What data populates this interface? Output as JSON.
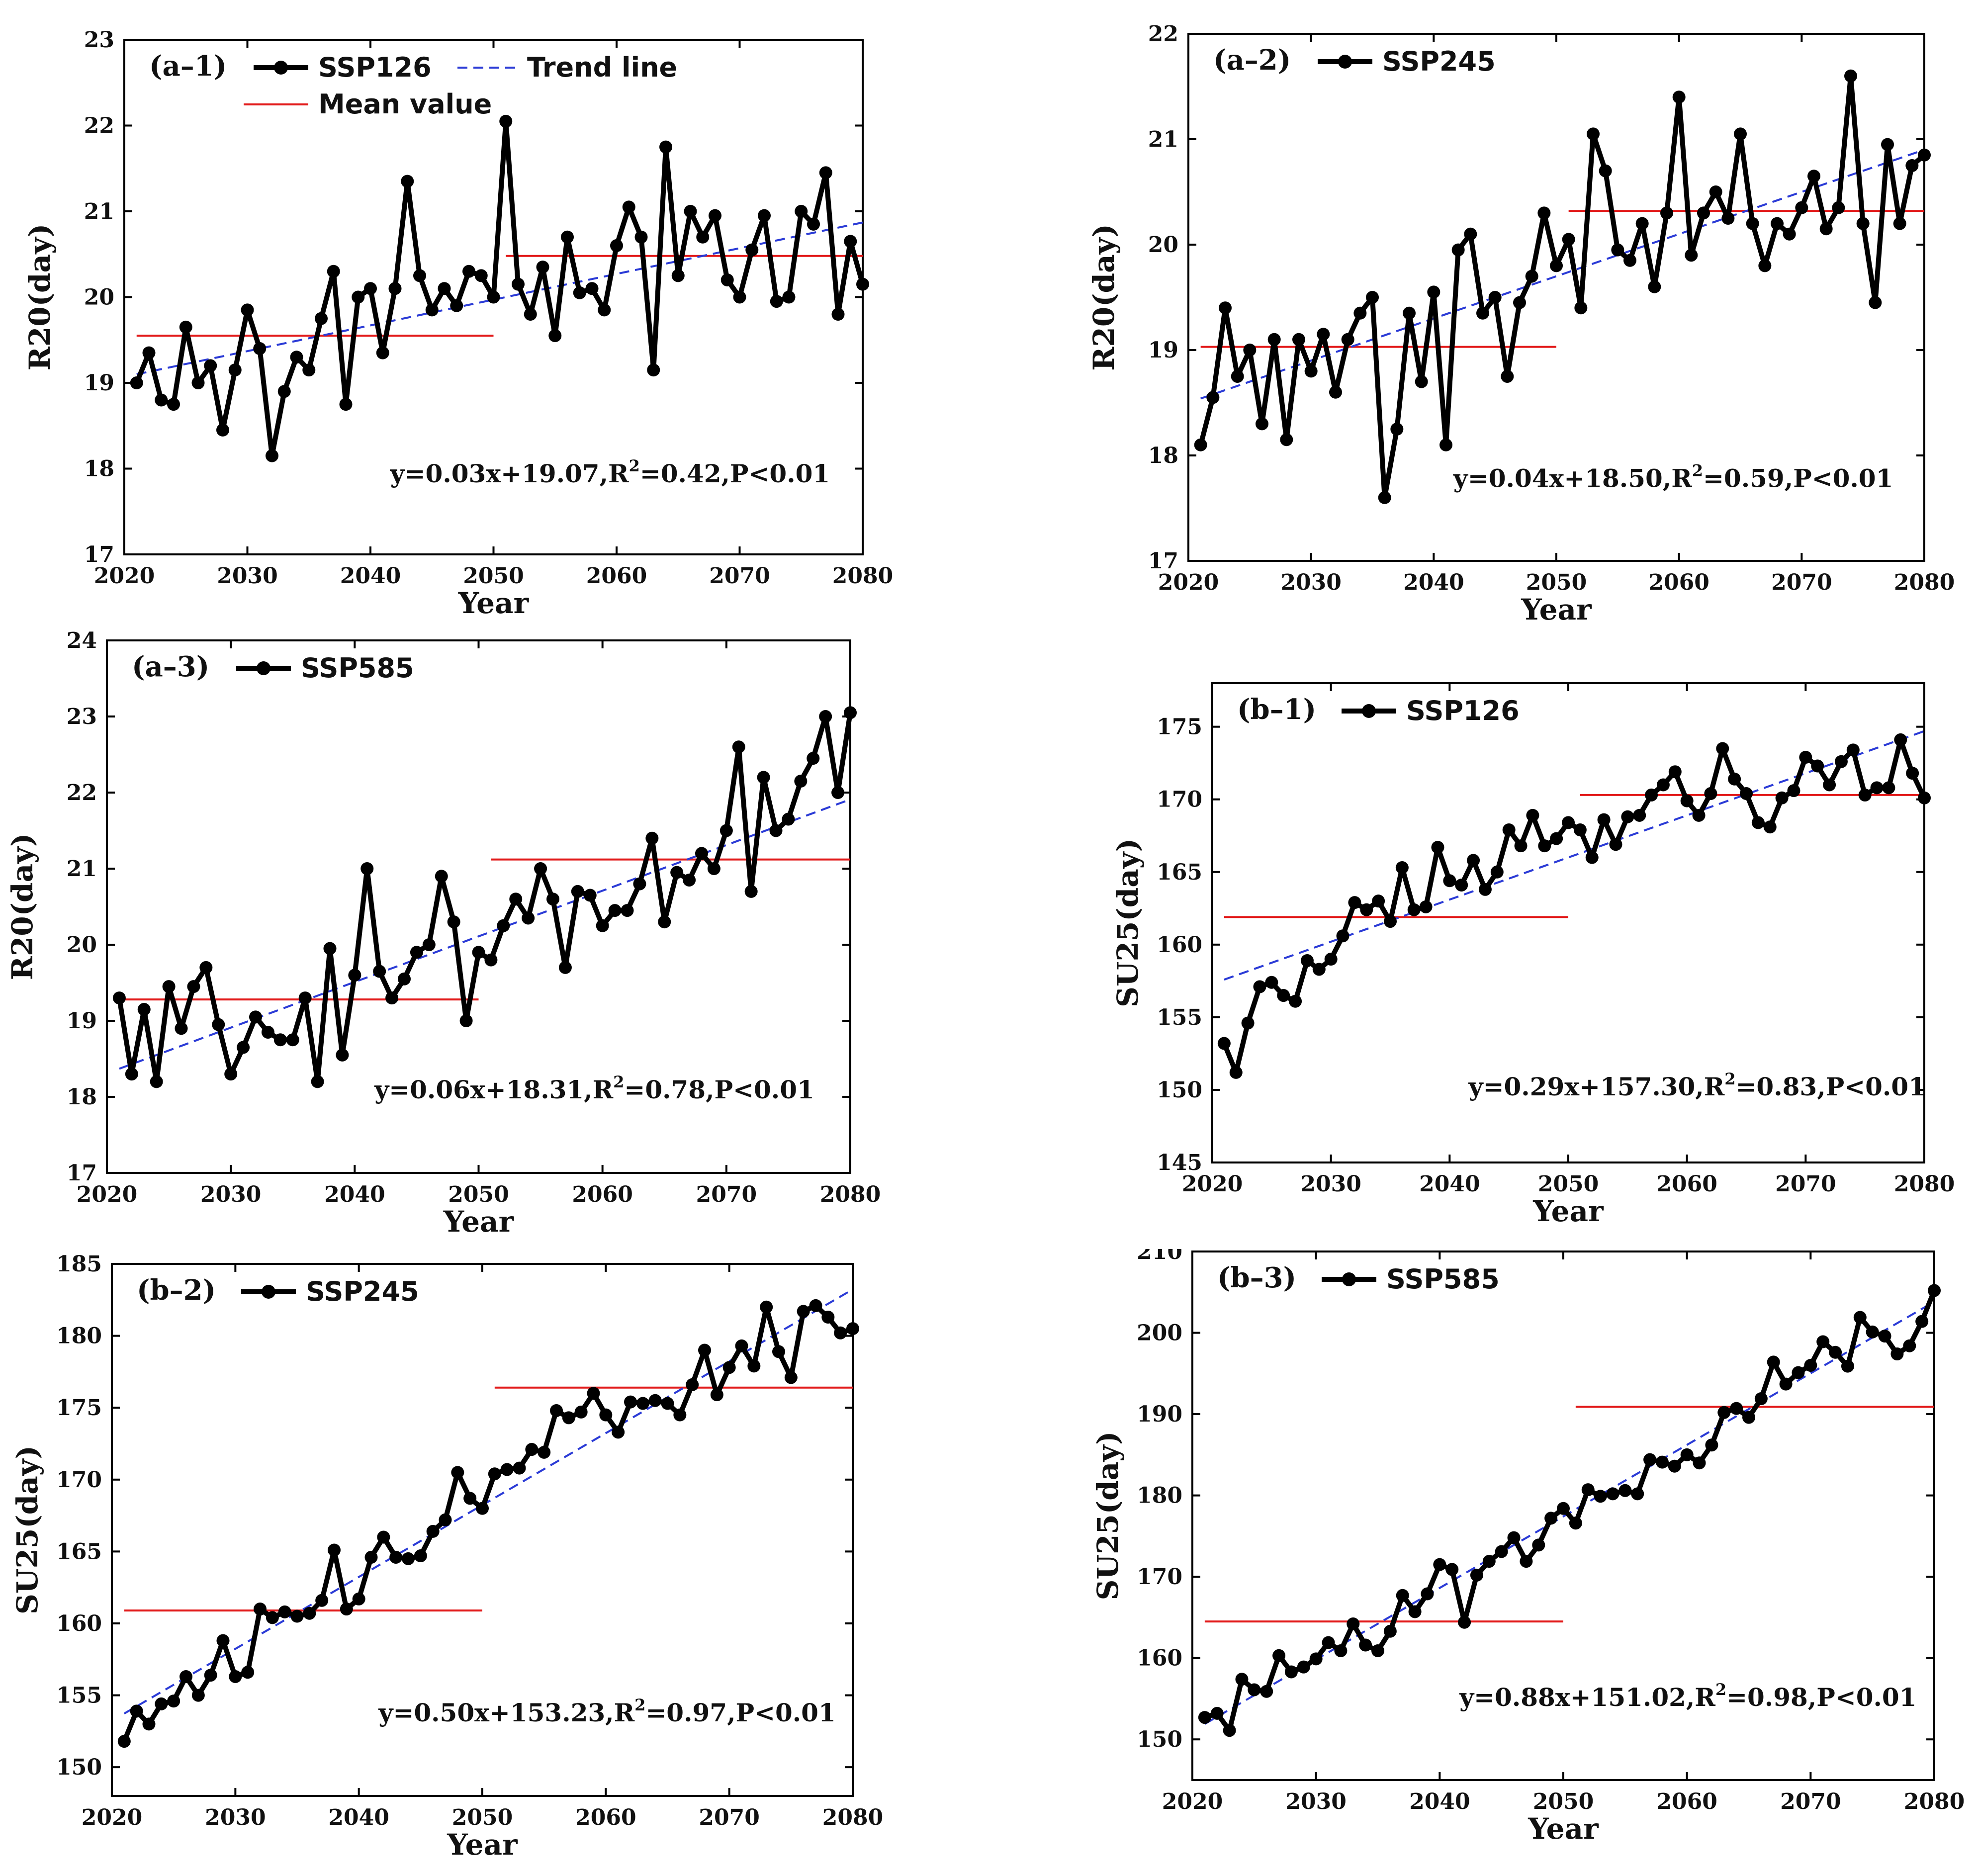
{
  "figure": {
    "panels": [
      {
        "id": "a1",
        "panel_label": "(a–1)",
        "scenario": "SSP126",
        "legend": {
          "series": "SSP126",
          "trend": "Trend line",
          "mean": "Mean value"
        },
        "equation_parts": {
          "prefix": "y=0.03x+19.07,R",
          "sup": "2",
          "suffix": "=0.42,P<0.01"
        }
      },
      {
        "id": "a2",
        "panel_label": "(a–2)",
        "scenario": "SSP245",
        "legend": {
          "series": "SSP245"
        },
        "equation_parts": {
          "prefix": "y=0.04x+18.50,R",
          "sup": "2",
          "suffix": "=0.59,P<0.01"
        }
      },
      {
        "id": "a3",
        "panel_label": "(a–3)",
        "scenario": "SSP585",
        "legend": {
          "series": "SSP585"
        },
        "equation_parts": {
          "prefix": "y=0.06x+18.31,R",
          "sup": "2",
          "suffix": "=0.78,P<0.01"
        }
      },
      {
        "id": "b1",
        "panel_label": "(b–1)",
        "scenario": "SSP126",
        "legend": {
          "series": "SSP126"
        },
        "equation_parts": {
          "prefix": "y=0.29x+157.30,R",
          "sup": "2",
          "suffix": "=0.83,P<0.01"
        }
      },
      {
        "id": "b2",
        "panel_label": "(b–2)",
        "scenario": "SSP245",
        "legend": {
          "series": "SSP245"
        },
        "equation_parts": {
          "prefix": "y=0.50x+153.23,R",
          "sup": "2",
          "suffix": "=0.97,P<0.01"
        }
      },
      {
        "id": "b3",
        "panel_label": "(b–3)",
        "scenario": "SSP585",
        "legend": {
          "series": "SSP585"
        },
        "equation_parts": {
          "prefix": "y=0.88x+151.02,R",
          "sup": "2",
          "suffix": "=0.98,P<0.01"
        }
      }
    ]
  },
  "colors": {
    "series": "#000000",
    "trend": "#2b3bd6",
    "mean": "#e21a1a"
  },
  "chart_data": [
    {
      "id": "a1",
      "type": "line",
      "title": "(a–1)",
      "xlabel": "Year",
      "ylabel": "R20(day)",
      "xlim": [
        2020,
        2080
      ],
      "ylim": [
        17,
        23
      ],
      "xticks": [
        2020,
        2030,
        2040,
        2050,
        2060,
        2070,
        2080
      ],
      "yticks": [
        17,
        18,
        19,
        20,
        21,
        22,
        23
      ],
      "x_start": 2021,
      "series": [
        {
          "name": "SSP126",
          "values": [
            19.0,
            19.35,
            18.8,
            18.75,
            19.65,
            19.0,
            19.2,
            18.45,
            19.15,
            19.85,
            19.4,
            18.15,
            18.9,
            19.3,
            19.15,
            19.75,
            20.3,
            18.75,
            20.0,
            20.1,
            19.35,
            20.1,
            21.35,
            20.25,
            19.85,
            20.1,
            19.9,
            20.3,
            20.25,
            20.0,
            22.05,
            20.15,
            19.8,
            20.35,
            19.55,
            20.7,
            20.05,
            20.1,
            19.85,
            20.6,
            21.05,
            20.7,
            19.15,
            21.75,
            20.25,
            21.0,
            20.7,
            20.95,
            20.2,
            20.0,
            20.55,
            20.95,
            19.95,
            20.0,
            21.0,
            20.85,
            21.45,
            19.8,
            20.65,
            20.15
          ]
        }
      ],
      "trend": {
        "slope": 0.03,
        "intercept": 19.07
      },
      "means": [
        {
          "from": 2021,
          "to": 2050,
          "value": 19.55
        },
        {
          "from": 2051,
          "to": 2080,
          "value": 20.48
        }
      ],
      "equation": "y=0.03x+19.07,R2=0.42,P<0.01",
      "legend": [
        "SSP126",
        "Trend line",
        "Mean value"
      ]
    },
    {
      "id": "a2",
      "type": "line",
      "title": "(a–2)",
      "xlabel": "Year",
      "ylabel": "R20(day)",
      "xlim": [
        2020,
        2080
      ],
      "ylim": [
        17,
        22
      ],
      "xticks": [
        2020,
        2030,
        2040,
        2050,
        2060,
        2070,
        2080
      ],
      "yticks": [
        17,
        18,
        19,
        20,
        21,
        22
      ],
      "x_start": 2021,
      "series": [
        {
          "name": "SSP245",
          "values": [
            18.1,
            18.55,
            19.4,
            18.75,
            19.0,
            18.3,
            19.1,
            18.15,
            19.1,
            18.8,
            19.15,
            18.6,
            19.1,
            19.35,
            19.5,
            17.6,
            18.25,
            19.35,
            18.7,
            19.55,
            18.1,
            19.95,
            20.1,
            19.35,
            19.5,
            18.75,
            19.45,
            19.7,
            20.3,
            19.8,
            20.05,
            19.4,
            21.05,
            20.7,
            19.95,
            19.85,
            20.2,
            19.6,
            20.3,
            21.4,
            19.9,
            20.3,
            20.5,
            20.25,
            21.05,
            20.2,
            19.8,
            20.2,
            20.1,
            20.35,
            20.65,
            20.15,
            20.35,
            21.6,
            20.2,
            19.45,
            20.95,
            20.2,
            20.75,
            20.85
          ]
        }
      ],
      "trend": {
        "slope": 0.04,
        "intercept": 18.5
      },
      "means": [
        {
          "from": 2021,
          "to": 2050,
          "value": 19.03
        },
        {
          "from": 2051,
          "to": 2080,
          "value": 20.32
        }
      ],
      "equation": "y=0.04x+18.50,R2=0.59,P<0.01",
      "legend": [
        "SSP245"
      ]
    },
    {
      "id": "a3",
      "type": "line",
      "title": "(a–3)",
      "xlabel": "Year",
      "ylabel": "R20(day)",
      "xlim": [
        2020,
        2080
      ],
      "ylim": [
        17,
        24
      ],
      "xticks": [
        2020,
        2030,
        2040,
        2050,
        2060,
        2070,
        2080
      ],
      "yticks": [
        17,
        18,
        19,
        20,
        21,
        22,
        23,
        24
      ],
      "x_start": 2021,
      "series": [
        {
          "name": "SSP585",
          "values": [
            19.3,
            18.3,
            19.15,
            18.2,
            19.45,
            18.9,
            19.45,
            19.7,
            18.95,
            18.3,
            18.65,
            19.05,
            18.85,
            18.75,
            18.75,
            19.3,
            18.2,
            19.95,
            18.55,
            19.6,
            21.0,
            19.65,
            19.3,
            19.55,
            19.9,
            20.0,
            20.9,
            20.3,
            19.0,
            19.9,
            19.8,
            20.25,
            20.6,
            20.35,
            21.0,
            20.6,
            19.7,
            20.7,
            20.65,
            20.25,
            20.45,
            20.45,
            20.8,
            21.4,
            20.3,
            20.95,
            20.85,
            21.2,
            21.0,
            21.5,
            22.6,
            20.7,
            22.2,
            21.5,
            21.65,
            22.15,
            22.45,
            23.0,
            22.0,
            23.05
          ]
        }
      ],
      "trend": {
        "slope": 0.06,
        "intercept": 18.31
      },
      "means": [
        {
          "from": 2021,
          "to": 2050,
          "value": 19.28
        },
        {
          "from": 2051,
          "to": 2080,
          "value": 21.12
        }
      ],
      "equation": "y=0.06x+18.31,R2=0.78,P<0.01",
      "legend": [
        "SSP585"
      ]
    },
    {
      "id": "b1",
      "type": "line",
      "title": "(b–1)",
      "xlabel": "Year",
      "ylabel": "SU25(day)",
      "xlim": [
        2020,
        2080
      ],
      "ylim": [
        145,
        178
      ],
      "xticks": [
        2020,
        2030,
        2040,
        2050,
        2060,
        2070,
        2080
      ],
      "yticks": [
        145,
        150,
        155,
        160,
        165,
        170,
        175
      ],
      "x_start": 2021,
      "series": [
        {
          "name": "SSP126",
          "values": [
            153.2,
            151.2,
            154.6,
            157.1,
            157.4,
            156.5,
            156.1,
            158.9,
            158.3,
            159.0,
            160.6,
            162.9,
            162.4,
            163.0,
            161.6,
            165.3,
            162.4,
            162.6,
            166.7,
            164.4,
            164.1,
            165.8,
            163.8,
            165.0,
            167.9,
            166.8,
            168.9,
            166.8,
            167.3,
            168.4,
            167.9,
            166.0,
            168.6,
            166.9,
            168.8,
            168.9,
            170.3,
            171.0,
            171.9,
            169.9,
            168.9,
            170.4,
            173.5,
            171.4,
            170.4,
            168.4,
            168.1,
            170.1,
            170.6,
            172.9,
            172.3,
            171.0,
            172.6,
            173.4,
            170.3,
            170.8,
            170.8,
            174.1,
            171.8,
            170.1
          ]
        }
      ],
      "trend": {
        "slope": 0.29,
        "intercept": 157.3
      },
      "means": [
        {
          "from": 2021,
          "to": 2050,
          "value": 161.9
        },
        {
          "from": 2051,
          "to": 2080,
          "value": 170.3
        }
      ],
      "equation": "y=0.29x+157.30,R2=0.83,P<0.01",
      "legend": [
        "SSP126"
      ]
    },
    {
      "id": "b2",
      "type": "line",
      "title": "(b–2)",
      "xlabel": "Year",
      "ylabel": "SU25(day)",
      "xlim": [
        2020,
        2080
      ],
      "ylim": [
        148,
        185
      ],
      "xticks": [
        2020,
        2030,
        2040,
        2050,
        2060,
        2070,
        2080
      ],
      "yticks": [
        150,
        155,
        160,
        165,
        170,
        175,
        180,
        185
      ],
      "x_start": 2021,
      "series": [
        {
          "name": "SSP245",
          "values": [
            151.8,
            153.9,
            153.0,
            154.4,
            154.6,
            156.3,
            155.0,
            156.4,
            158.8,
            156.3,
            156.6,
            161.0,
            160.4,
            160.8,
            160.5,
            160.7,
            161.6,
            165.1,
            161.0,
            161.7,
            164.6,
            166.0,
            164.6,
            164.5,
            164.7,
            166.4,
            167.2,
            170.5,
            168.7,
            168.0,
            170.4,
            170.7,
            170.8,
            172.1,
            171.9,
            174.8,
            174.3,
            174.7,
            176.0,
            174.5,
            173.3,
            175.4,
            175.3,
            175.5,
            175.3,
            174.5,
            176.6,
            179.0,
            175.9,
            177.8,
            179.3,
            177.9,
            182.0,
            178.9,
            177.1,
            181.7,
            182.1,
            181.3,
            180.2,
            180.5
          ]
        }
      ],
      "trend": {
        "slope": 0.5,
        "intercept": 153.23
      },
      "means": [
        {
          "from": 2021,
          "to": 2050,
          "value": 160.9
        },
        {
          "from": 2051,
          "to": 2080,
          "value": 176.4
        }
      ],
      "equation": "y=0.50x+153.23,R2=0.97,P<0.01",
      "legend": [
        "SSP245"
      ]
    },
    {
      "id": "b3",
      "type": "line",
      "title": "(b–3)",
      "xlabel": "Year",
      "ylabel": "SU25(day)",
      "xlim": [
        2020,
        2080
      ],
      "ylim": [
        145,
        210
      ],
      "xticks": [
        2020,
        2030,
        2040,
        2050,
        2060,
        2070,
        2080
      ],
      "yticks": [
        150,
        160,
        170,
        180,
        190,
        200,
        210
      ],
      "x_start": 2021,
      "series": [
        {
          "name": "SSP585",
          "values": [
            152.7,
            153.2,
            151.1,
            157.4,
            156.1,
            155.9,
            160.3,
            158.3,
            158.9,
            159.9,
            161.9,
            160.9,
            164.2,
            161.6,
            160.9,
            163.3,
            167.7,
            165.7,
            167.9,
            171.5,
            170.9,
            164.4,
            170.2,
            171.9,
            173.1,
            174.8,
            171.9,
            173.9,
            177.2,
            178.4,
            176.6,
            180.7,
            179.9,
            180.2,
            180.6,
            180.2,
            184.4,
            184.1,
            183.6,
            185.0,
            184.0,
            186.2,
            190.2,
            190.7,
            189.6,
            191.9,
            196.4,
            193.7,
            195.1,
            196.0,
            198.9,
            197.6,
            195.9,
            201.9,
            200.1,
            199.6,
            197.4,
            198.4,
            201.4,
            205.2
          ]
        }
      ],
      "trend": {
        "slope": 0.88,
        "intercept": 151.02
      },
      "means": [
        {
          "from": 2021,
          "to": 2050,
          "value": 164.5
        },
        {
          "from": 2051,
          "to": 2080,
          "value": 190.9
        }
      ],
      "equation": "y=0.88x+151.02,R2=0.98,P<0.01",
      "legend": [
        "SSP585"
      ]
    }
  ]
}
